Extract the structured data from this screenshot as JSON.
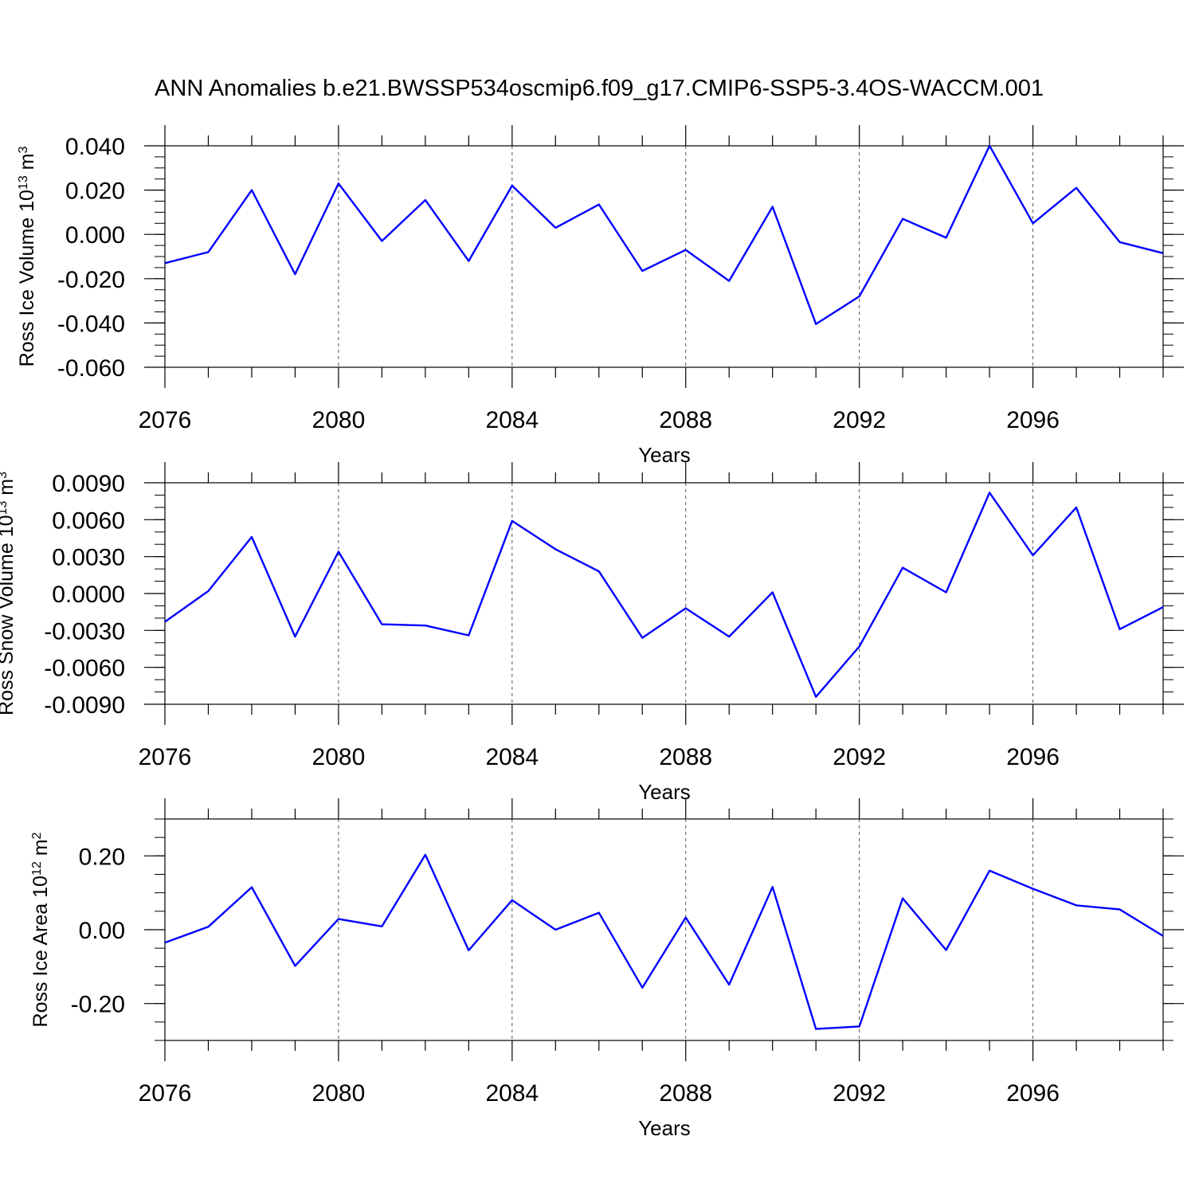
{
  "figure": {
    "title": "ANN Anomalies b.e21.BWSSP534oscmip6.f09_g17.CMIP6-SSP5-3.4OS-WACCM.001",
    "line_color": "#0000ff"
  },
  "chart_data": [
    {
      "type": "line",
      "title": "ANN Anomalies b.e21.BWSSP534oscmip6.f09_g17.CMIP6-SSP5-3.4OS-WACCM.001",
      "xlabel": "Years",
      "ylabel_parts": [
        "Ross Ice Volume 10",
        "13",
        " m",
        "3"
      ],
      "x": [
        2076,
        2077,
        2078,
        2079,
        2080,
        2081,
        2082,
        2083,
        2084,
        2085,
        2086,
        2087,
        2088,
        2089,
        2090,
        2091,
        2092,
        2093,
        2094,
        2095,
        2096,
        2097,
        2098,
        2099
      ],
      "series": [
        {
          "name": "Ross Ice Volume",
          "values": [
            -0.013,
            -0.008,
            0.02,
            -0.018,
            0.023,
            -0.003,
            0.0155,
            -0.012,
            0.022,
            0.003,
            0.0135,
            -0.0165,
            -0.007,
            -0.021,
            0.0125,
            -0.0405,
            -0.028,
            0.007,
            -0.0015,
            0.04,
            0.005,
            0.021,
            -0.0035,
            -0.0085
          ]
        }
      ],
      "xlim": [
        2076,
        2099
      ],
      "ylim": [
        -0.06,
        0.04
      ],
      "ytick_values": [
        -0.06,
        -0.04,
        -0.02,
        0.0,
        0.02,
        0.04
      ],
      "ytick_labels": [
        "-0.060",
        "-0.040",
        "-0.020",
        "0.000",
        "0.020",
        "0.040"
      ],
      "xtick_values": [
        2076,
        2080,
        2084,
        2088,
        2092,
        2096
      ],
      "xtick_labels": [
        "2076",
        "2080",
        "2084",
        "2088",
        "2092",
        "2096"
      ],
      "y_minor_step": 0.005,
      "grid": "vertical dashed"
    },
    {
      "type": "line",
      "xlabel": "Years",
      "ylabel_parts": [
        "Ross Snow Volume 10",
        "13",
        " m",
        "3"
      ],
      "x": [
        2076,
        2077,
        2078,
        2079,
        2080,
        2081,
        2082,
        2083,
        2084,
        2085,
        2086,
        2087,
        2088,
        2089,
        2090,
        2091,
        2092,
        2093,
        2094,
        2095,
        2096,
        2097,
        2098,
        2099
      ],
      "series": [
        {
          "name": "Ross Snow Volume",
          "values": [
            -0.0023,
            0.0002,
            0.0046,
            -0.0035,
            0.0034,
            -0.0025,
            -0.0026,
            -0.0034,
            0.0059,
            0.0036,
            0.0018,
            -0.0036,
            -0.0012,
            -0.0035,
            0.0001,
            -0.0084,
            -0.0043,
            0.0021,
            0.0001,
            0.0082,
            0.0031,
            0.007,
            -0.0029,
            -0.0011
          ]
        }
      ],
      "xlim": [
        2076,
        2099
      ],
      "ylim": [
        -0.009,
        0.009
      ],
      "ytick_values": [
        -0.009,
        -0.006,
        -0.003,
        0.0,
        0.003,
        0.006,
        0.009
      ],
      "ytick_labels": [
        "-0.0090",
        "-0.0060",
        "-0.0030",
        "0.0000",
        "0.0030",
        "0.0060",
        "0.0090"
      ],
      "xtick_values": [
        2076,
        2080,
        2084,
        2088,
        2092,
        2096
      ],
      "xtick_labels": [
        "2076",
        "2080",
        "2084",
        "2088",
        "2092",
        "2096"
      ],
      "y_minor_step": 0.001,
      "grid": "vertical dashed"
    },
    {
      "type": "line",
      "xlabel": "Years",
      "ylabel_parts": [
        "Ross Ice Area 10",
        "12",
        " m",
        "2"
      ],
      "x": [
        2076,
        2077,
        2078,
        2079,
        2080,
        2081,
        2082,
        2083,
        2084,
        2085,
        2086,
        2087,
        2088,
        2089,
        2090,
        2091,
        2092,
        2093,
        2094,
        2095,
        2096,
        2097,
        2098,
        2099
      ],
      "series": [
        {
          "name": "Ross Ice Area",
          "values": [
            -0.035,
            0.008,
            0.115,
            -0.098,
            0.029,
            0.009,
            0.203,
            -0.056,
            0.08,
            0.0,
            0.046,
            -0.157,
            0.033,
            -0.149,
            0.116,
            -0.269,
            -0.262,
            0.085,
            -0.055,
            0.16,
            0.111,
            0.066,
            0.055,
            -0.017
          ]
        }
      ],
      "xlim": [
        2076,
        2099
      ],
      "ylim": [
        -0.3,
        0.3
      ],
      "ytick_values": [
        -0.2,
        0.0,
        0.2
      ],
      "ytick_labels": [
        "-0.20",
        "0.00",
        "0.20"
      ],
      "xtick_values": [
        2076,
        2080,
        2084,
        2088,
        2092,
        2096
      ],
      "xtick_labels": [
        "2076",
        "2080",
        "2084",
        "2088",
        "2092",
        "2096"
      ],
      "y_minor_step": 0.05,
      "grid": "vertical dashed"
    }
  ]
}
